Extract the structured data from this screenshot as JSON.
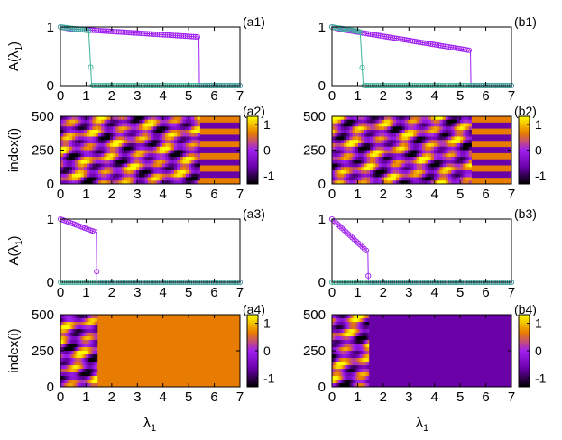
{
  "figure": {
    "xlabel_main": "λ",
    "xlabel_sub": "1"
  },
  "chart_data": [
    {
      "id": "a1",
      "type": "line",
      "panel_label": "(a1)",
      "ylabel_main": "A(λ",
      "ylabel_sub": "1",
      "ylabel_end": ")",
      "xlim": [
        0,
        7
      ],
      "ylim": [
        0,
        1
      ],
      "xticks": [
        "0",
        "1",
        "2",
        "3",
        "4",
        "5",
        "6",
        "7"
      ],
      "yticks": [
        "0",
        "1"
      ],
      "series": [
        {
          "color": "#a020f0",
          "x": [
            0,
            0.35,
            5.4,
            5.42,
            7
          ],
          "y": [
            1.0,
            0.97,
            0.83,
            0.0,
            0.0
          ]
        },
        {
          "color": "#3cb39a",
          "x": [
            0,
            1.1,
            1.22,
            7
          ],
          "y": [
            1.0,
            0.94,
            0.0,
            0.0
          ]
        }
      ]
    },
    {
      "id": "a2",
      "type": "heatmap",
      "panel_label": "(a2)",
      "ylabel": "index(i)",
      "xlim": [
        0,
        7
      ],
      "ylim": [
        0,
        500
      ],
      "xticks": [
        "0",
        "1",
        "2",
        "3",
        "4",
        "5",
        "6",
        "7"
      ],
      "yticks": [
        "0",
        "250",
        "500"
      ],
      "colorbar_ticks": [
        "1",
        "0",
        "-1"
      ],
      "transition_x": 5.45,
      "regime_after": "stripes",
      "stripe_count": 11
    },
    {
      "id": "a3",
      "type": "line",
      "panel_label": "(a3)",
      "ylabel_main": "A(λ",
      "ylabel_sub": "1",
      "ylabel_end": ")",
      "xlim": [
        0,
        7
      ],
      "ylim": [
        0,
        1
      ],
      "xticks": [
        "0",
        "1",
        "2",
        "3",
        "4",
        "5",
        "6",
        "7"
      ],
      "yticks": [
        "0",
        "1"
      ],
      "series": [
        {
          "color": "#a020f0",
          "x": [
            0,
            1.4,
            1.42,
            7
          ],
          "y": [
            1.0,
            0.79,
            0.0,
            0.0
          ]
        },
        {
          "color": "#3cb39a",
          "x": [
            0,
            7
          ],
          "y": [
            0.0,
            0.0
          ]
        }
      ]
    },
    {
      "id": "a4",
      "type": "heatmap",
      "panel_label": "(a4)",
      "ylabel": "index(i)",
      "xlim": [
        0,
        7
      ],
      "ylim": [
        0,
        500
      ],
      "xticks": [
        "0",
        "1",
        "2",
        "3",
        "4",
        "5",
        "6",
        "7"
      ],
      "yticks": [
        "0",
        "250",
        "500"
      ],
      "colorbar_ticks": [
        "1",
        "0",
        "-1"
      ],
      "transition_x": 1.45,
      "regime_after": "uniform",
      "uniform_value": 0.6
    },
    {
      "id": "b1",
      "type": "line",
      "panel_label": "(b1)",
      "xlim": [
        0,
        7
      ],
      "ylim": [
        0,
        1
      ],
      "xticks": [
        "0",
        "1",
        "2",
        "3",
        "4",
        "5",
        "6",
        "7"
      ],
      "yticks": [
        "0",
        "1"
      ],
      "series": [
        {
          "color": "#a020f0",
          "x": [
            0,
            0.35,
            5.4,
            5.42,
            7
          ],
          "y": [
            1.0,
            0.96,
            0.6,
            0.0,
            0.0
          ]
        },
        {
          "color": "#3cb39a",
          "x": [
            0,
            1.1,
            1.22,
            7
          ],
          "y": [
            1.0,
            0.92,
            0.0,
            0.0
          ]
        }
      ]
    },
    {
      "id": "b2",
      "type": "heatmap",
      "panel_label": "(b2)",
      "xlim": [
        0,
        7
      ],
      "ylim": [
        0,
        500
      ],
      "xticks": [
        "0",
        "1",
        "2",
        "3",
        "4",
        "5",
        "6",
        "7"
      ],
      "yticks": [
        "0",
        "250",
        "500"
      ],
      "colorbar_ticks": [
        "1",
        "0",
        "-1"
      ],
      "transition_x": 5.45,
      "regime_after": "stripes",
      "stripe_count": 11
    },
    {
      "id": "b3",
      "type": "line",
      "panel_label": "(b3)",
      "xlim": [
        0,
        7
      ],
      "ylim": [
        0,
        1
      ],
      "xticks": [
        "0",
        "1",
        "2",
        "3",
        "4",
        "5",
        "6",
        "7"
      ],
      "yticks": [
        "0",
        "1"
      ],
      "series": [
        {
          "color": "#a020f0",
          "x": [
            0,
            1.4,
            1.42,
            7
          ],
          "y": [
            1.0,
            0.48,
            0.0,
            0.0
          ]
        },
        {
          "color": "#3cb39a",
          "x": [
            0,
            7
          ],
          "y": [
            0.0,
            0.0
          ]
        }
      ]
    },
    {
      "id": "b4",
      "type": "heatmap",
      "panel_label": "(b4)",
      "xlim": [
        0,
        7
      ],
      "ylim": [
        0,
        500
      ],
      "xticks": [
        "0",
        "1",
        "2",
        "3",
        "4",
        "5",
        "6",
        "7"
      ],
      "yticks": [
        "0",
        "250",
        "500"
      ],
      "colorbar_ticks": [
        "1",
        "0",
        "-1"
      ],
      "transition_x": 1.45,
      "regime_after": "uniform",
      "uniform_value": -0.6
    }
  ]
}
